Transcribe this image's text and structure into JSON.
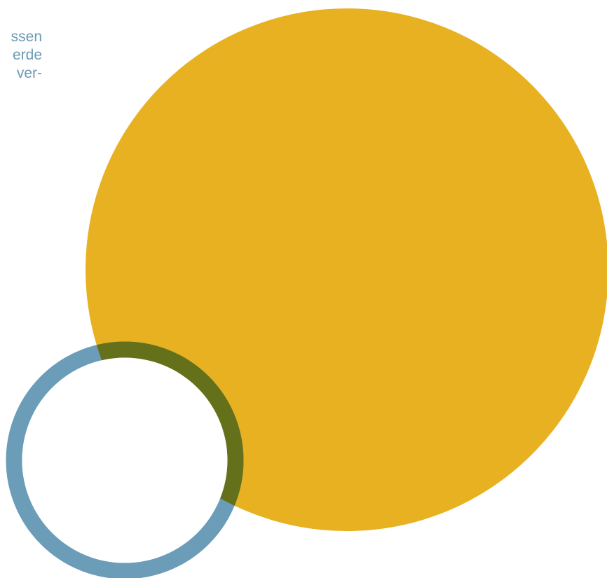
{
  "text_fragment": {
    "lines": [
      "ssen",
      "erde",
      "ver-"
    ]
  },
  "colors": {
    "large_circle_fill": "#e8b121",
    "small_ring_stroke": "#6b9db8",
    "ring_overlap": "#65701a",
    "ring_inner": "#ffffff",
    "text": "#6b9bb3",
    "background": "#ffffff"
  }
}
